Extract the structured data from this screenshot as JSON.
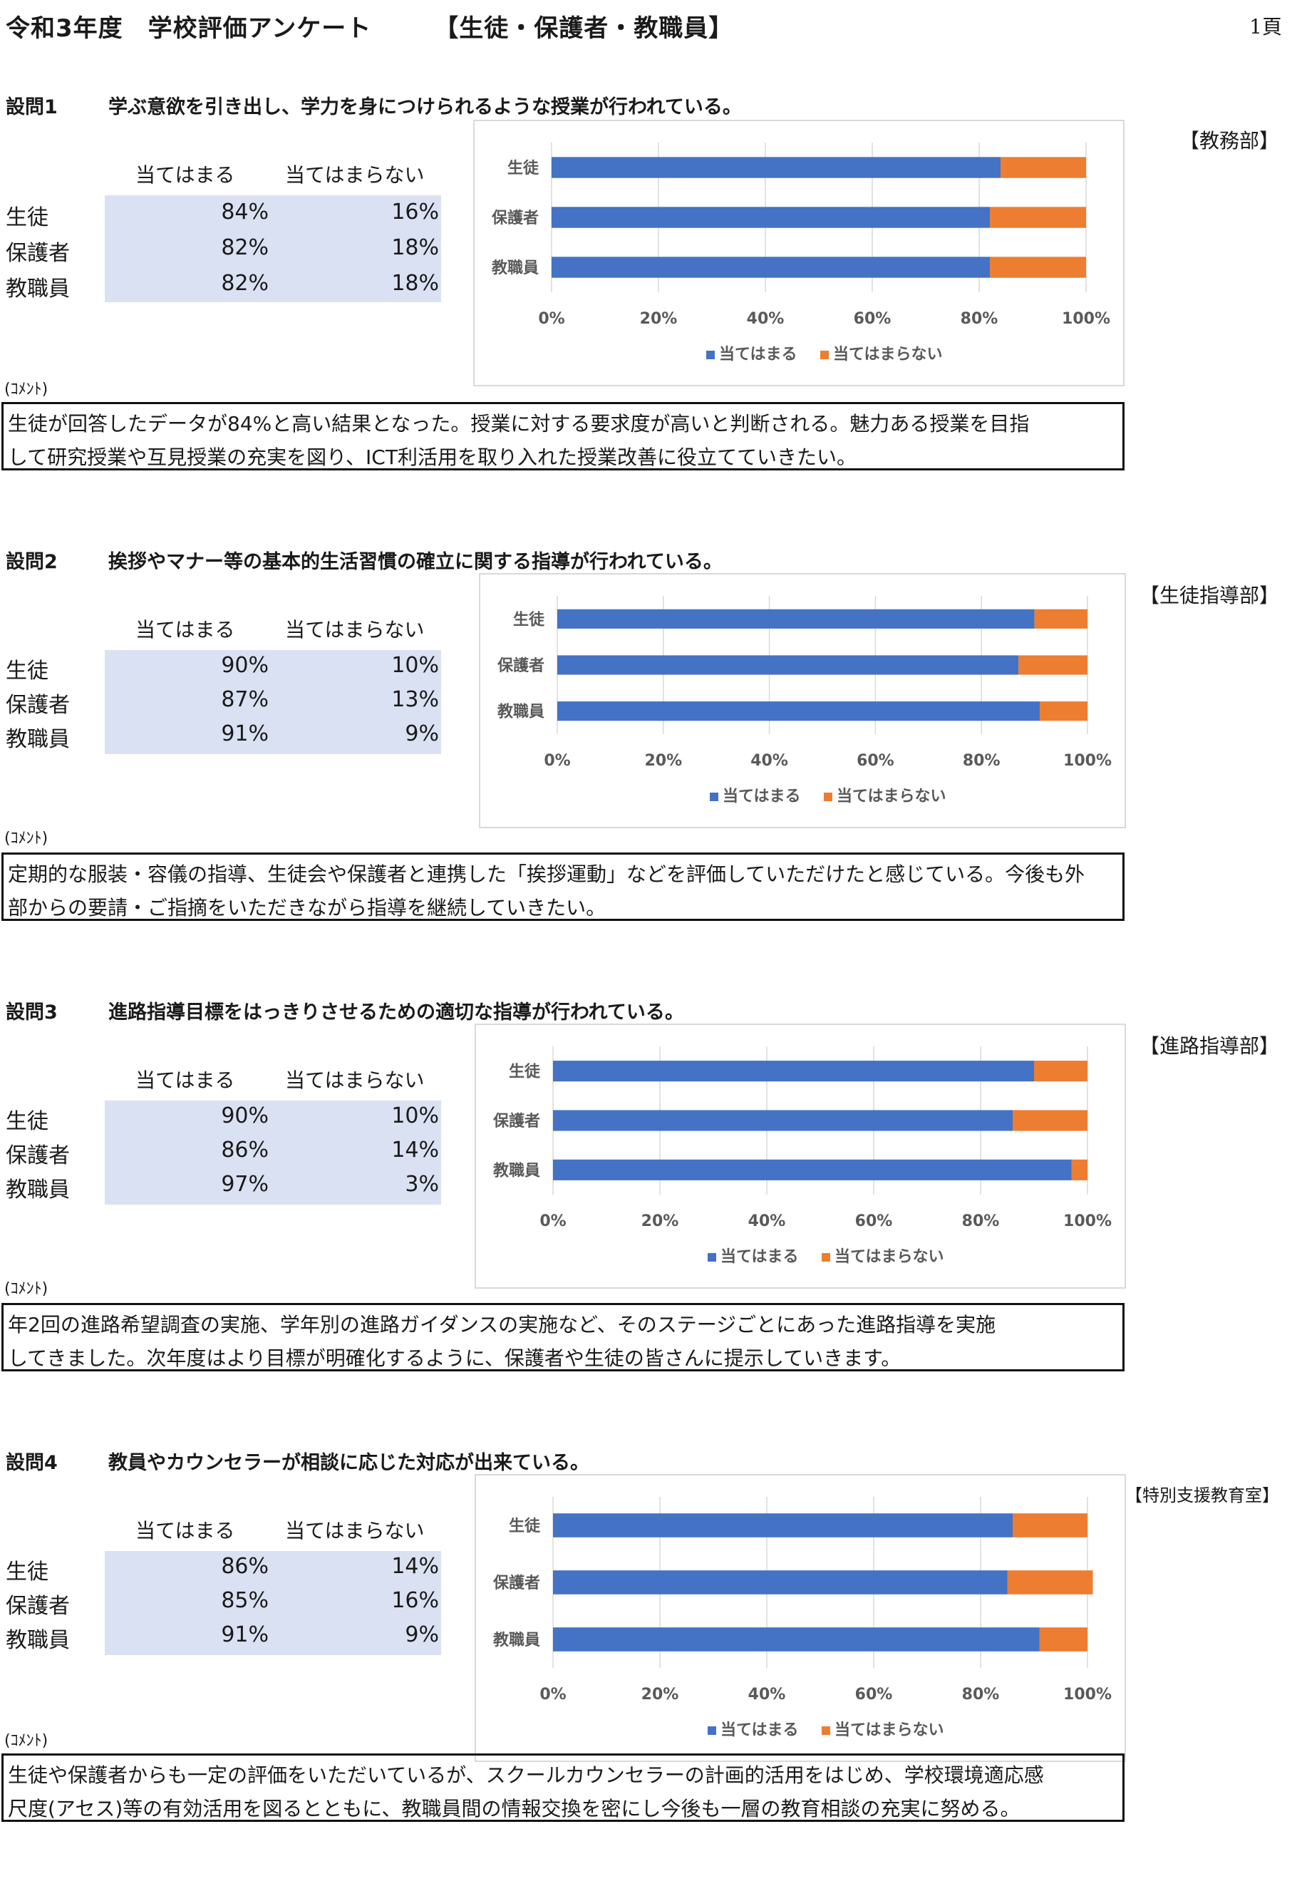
{
  "header": {
    "title": "令和3年度　学校評価アンケート　　　【生徒・保護者・教職員】",
    "page": "1頁"
  },
  "common": {
    "col_yes": "当てはまる",
    "col_no": "当てはまらない",
    "comment_label": "(ｺﾒﾝﾄ)",
    "rows": [
      "生徒",
      "保護者",
      "教職員"
    ],
    "colors": {
      "yes": "#4472c4",
      "no": "#ed7d31",
      "table_shade": "#dae1f2"
    }
  },
  "questions": [
    {
      "num": "設問1",
      "text": "学ぶ意欲を引き出し、学力を身につけられるような授業が行われている。",
      "dept": "【教務部】",
      "table": [
        [
          "84%",
          "16%"
        ],
        [
          "82%",
          "18%"
        ],
        [
          "82%",
          "18%"
        ]
      ],
      "comment": [
        "生徒が回答したデータが84%と高い結果となった。授業に対する要求度が高いと判断される。魅力ある授業を目指",
        "して研究授業や互見授業の充実を図り、ICT利活用を取り入れた授業改善に役立てていきたい。"
      ]
    },
    {
      "num": "設問2",
      "text": "挨拶やマナー等の基本的生活習慣の確立に関する指導が行われている。",
      "dept": "【生徒指導部】",
      "table": [
        [
          "90%",
          "10%"
        ],
        [
          "87%",
          "13%"
        ],
        [
          "91%",
          "9%"
        ]
      ],
      "comment": [
        "定期的な服装・容儀の指導、生徒会や保護者と連携した「挨拶運動」などを評価していただけたと感じている。今後も外",
        "部からの要請・ご指摘をいただきながら指導を継続していきたい。"
      ]
    },
    {
      "num": "設問3",
      "text": "進路指導目標をはっきりさせるための適切な指導が行われている。",
      "dept": "【進路指導部】",
      "table": [
        [
          "90%",
          "10%"
        ],
        [
          "86%",
          "14%"
        ],
        [
          "97%",
          "3%"
        ]
      ],
      "comment": [
        "年2回の進路希望調査の実施、学年別の進路ガイダンスの実施など、そのステージごとにあった進路指導を実施",
        "してきました。次年度はより目標が明確化するように、保護者や生徒の皆さんに提示していきます。"
      ]
    },
    {
      "num": "設問4",
      "text": "教員やカウンセラーが相談に応じた対応が出来ている。",
      "dept": "【特別支援教育室】",
      "table": [
        [
          "86%",
          "14%"
        ],
        [
          "85%",
          "16%"
        ],
        [
          "91%",
          "9%"
        ]
      ],
      "comment": [
        "生徒や保護者からも一定の評価をいただいているが、スクールカウンセラーの計画的活用をはじめ、学校環境適応感",
        "尺度(アセス)等の有効活用を図るとともに、教職員間の情報交換を密にし今後も一層の教育相談の充実に努める。"
      ]
    }
  ],
  "chart_data": [
    {
      "type": "bar",
      "stacked": true,
      "orientation": "horizontal",
      "categories": [
        "生徒",
        "保護者",
        "教職員"
      ],
      "series": [
        {
          "name": "当てはまる",
          "values": [
            84,
            82,
            82
          ],
          "color": "#4472c4"
        },
        {
          "name": "当てはまらない",
          "values": [
            16,
            18,
            18
          ],
          "color": "#ed7d31"
        }
      ],
      "xticks": [
        "0%",
        "20%",
        "40%",
        "60%",
        "80%",
        "100%"
      ],
      "xlim": [
        0,
        100
      ],
      "grid": true,
      "legend": "bottom"
    },
    {
      "type": "bar",
      "stacked": true,
      "orientation": "horizontal",
      "categories": [
        "生徒",
        "保護者",
        "教職員"
      ],
      "series": [
        {
          "name": "当てはまる",
          "values": [
            90,
            87,
            91
          ],
          "color": "#4472c4"
        },
        {
          "name": "当てはまらない",
          "values": [
            10,
            13,
            9
          ],
          "color": "#ed7d31"
        }
      ],
      "xticks": [
        "0%",
        "20%",
        "40%",
        "60%",
        "80%",
        "100%"
      ],
      "xlim": [
        0,
        100
      ],
      "grid": true,
      "legend": "bottom"
    },
    {
      "type": "bar",
      "stacked": true,
      "orientation": "horizontal",
      "categories": [
        "生徒",
        "保護者",
        "教職員"
      ],
      "series": [
        {
          "name": "当てはまる",
          "values": [
            90,
            86,
            97
          ],
          "color": "#4472c4"
        },
        {
          "name": "当てはまらない",
          "values": [
            10,
            14,
            3
          ],
          "color": "#ed7d31"
        }
      ],
      "xticks": [
        "0%",
        "20%",
        "40%",
        "60%",
        "80%",
        "100%"
      ],
      "xlim": [
        0,
        100
      ],
      "grid": true,
      "legend": "bottom"
    },
    {
      "type": "bar",
      "stacked": true,
      "orientation": "horizontal",
      "categories": [
        "生徒",
        "保護者",
        "教職員"
      ],
      "series": [
        {
          "name": "当てはまる",
          "values": [
            86,
            85,
            91
          ],
          "color": "#4472c4"
        },
        {
          "name": "当てはまらない",
          "values": [
            14,
            16,
            9
          ],
          "color": "#ed7d31"
        }
      ],
      "xticks": [
        "0%",
        "20%",
        "40%",
        "60%",
        "80%",
        "100%"
      ],
      "xlim": [
        0,
        100
      ],
      "grid": true,
      "legend": "bottom"
    }
  ]
}
